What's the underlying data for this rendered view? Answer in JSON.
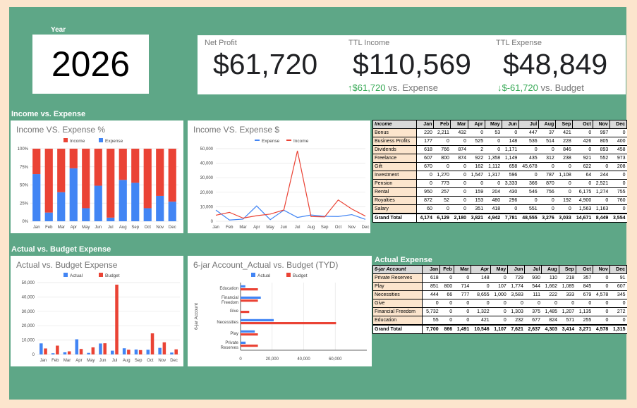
{
  "year": {
    "label": "Year",
    "value": "2026"
  },
  "kpis": {
    "net_profit": {
      "label": "Net Profit",
      "value": "$61,720"
    },
    "ttl_income": {
      "label": "TTL Income",
      "value": "$110,569",
      "delta_arrow": "↑",
      "delta_value": "$61,720",
      "delta_text": "vs. Expense"
    },
    "ttl_expense": {
      "label": "TTL Expense",
      "value": "$48,849",
      "delta_arrow": "↓",
      "delta_value": "$-61,720",
      "delta_text": "vs. Budget"
    }
  },
  "sections": {
    "income_vs_expense": "Income vs. Expense",
    "actual_vs_budget": "Actual vs. Budget Expense",
    "actual_expense": "Actual Expense"
  },
  "colors": {
    "income": "#ea4335",
    "expense": "#4285f4",
    "panel": "#5ea787",
    "page": "#fce5cd",
    "positive": "#34a853"
  },
  "chart_data": [
    {
      "id": "pct",
      "type": "bar",
      "stacked": "percent",
      "title": "Income VS. Expense %",
      "categories": [
        "Jan",
        "Feb",
        "Mar",
        "Apr",
        "May",
        "Jun",
        "Jul",
        "Aug",
        "Sep",
        "Oct",
        "Nov",
        "Dec"
      ],
      "series": [
        {
          "name": "Income",
          "color": "#ea4335",
          "values": [
            35,
            88,
            60,
            27,
            82,
            51,
            95,
            43,
            47,
            82,
            65,
            73
          ]
        },
        {
          "name": "Expense",
          "color": "#4285f4",
          "values": [
            65,
            12,
            40,
            73,
            18,
            49,
            5,
            57,
            53,
            18,
            35,
            27
          ]
        }
      ],
      "yticks": [
        "0%",
        "25%",
        "50%",
        "75%",
        "100%"
      ],
      "ylim": [
        0,
        100
      ],
      "legend": "top"
    },
    {
      "id": "line",
      "type": "line",
      "title": "Income VS. Expense $",
      "categories": [
        "Jan",
        "Feb",
        "Mar",
        "Apr",
        "May",
        "Jun",
        "Jul",
        "Aug",
        "Sep",
        "Oct",
        "Nov",
        "Dec"
      ],
      "series": [
        {
          "name": "Expense",
          "color": "#4285f4",
          "values": [
            7700,
            866,
            1491,
            10546,
            1107,
            7621,
            2637,
            4303,
            3414,
            3271,
            4578,
            1315
          ]
        },
        {
          "name": "Income",
          "color": "#ea4335",
          "values": [
            4174,
            6129,
            2180,
            3821,
            4942,
            7781,
            48555,
            3276,
            3033,
            14671,
            8449,
            3554
          ]
        }
      ],
      "yticks": [
        "0",
        "10,000",
        "20,000",
        "30,000",
        "40,000",
        "50,000"
      ],
      "ylim": [
        0,
        50000
      ],
      "legend": "top"
    },
    {
      "id": "avb",
      "type": "bar",
      "title": "Actual vs. Budget Expense",
      "categories": [
        "Jan",
        "Feb",
        "Mar",
        "Apr",
        "May",
        "Jun",
        "Jul",
        "Aug",
        "Sep",
        "Oct",
        "Nov",
        "Dec"
      ],
      "series": [
        {
          "name": "Actual",
          "color": "#4285f4",
          "values": [
            7700,
            866,
            1491,
            10546,
            1107,
            7621,
            2637,
            4303,
            3414,
            3271,
            4578,
            1315
          ]
        },
        {
          "name": "Budget",
          "color": "#ea4335",
          "values": [
            4174,
            6129,
            2180,
            3821,
            4942,
            7781,
            48555,
            3276,
            3033,
            14671,
            8449,
            3554
          ]
        }
      ],
      "yticks": [
        "0",
        "10,000",
        "20,000",
        "30,000",
        "40,000",
        "50,000"
      ],
      "ylim": [
        0,
        50000
      ],
      "legend": "top"
    },
    {
      "id": "jar",
      "type": "bar",
      "orientation": "horizontal",
      "title": "6-jar Account_Actual vs. Budget (TYD)",
      "ylabel": "6-jar Account",
      "categories": [
        "Education",
        "Financial Freedom",
        "Give",
        "Necessities",
        "Play",
        "Private Reserves"
      ],
      "series": [
        {
          "name": "Actual",
          "color": "#4285f4",
          "values": [
            3035,
            12831,
            0,
            20997,
            9029,
            3201
          ]
        },
        {
          "name": "Budget",
          "color": "#ea4335",
          "values": [
            11000,
            11000,
            5500,
            60500,
            11000,
            11000
          ]
        }
      ],
      "xticks": [
        "0",
        "20,000",
        "40,000",
        "60,000"
      ],
      "xlim": [
        0,
        80000
      ],
      "legend": "top"
    }
  ],
  "income_table": {
    "headers": [
      "Income",
      "Jan",
      "Feb",
      "Mar",
      "Apr",
      "May",
      "Jun",
      "Jul",
      "Aug",
      "Sep",
      "Oct",
      "Nov",
      "Dec"
    ],
    "rows": [
      [
        "Bonus",
        "220",
        "2,211",
        "432",
        "0",
        "53",
        "0",
        "447",
        "37",
        "421",
        "0",
        "997",
        "0"
      ],
      [
        "Business Profits",
        "177",
        "0",
        "0",
        "525",
        "0",
        "148",
        "536",
        "514",
        "228",
        "426",
        "805",
        "400"
      ],
      [
        "Dividends",
        "618",
        "766",
        "874",
        "2",
        "0",
        "1,171",
        "0",
        "0",
        "846",
        "0",
        "893",
        "458"
      ],
      [
        "Freelance",
        "607",
        "800",
        "874",
        "922",
        "1,358",
        "1,149",
        "435",
        "312",
        "238",
        "921",
        "552",
        "973"
      ],
      [
        "Gift",
        "670",
        "0",
        "0",
        "162",
        "1,112",
        "658",
        "45,678",
        "0",
        "0",
        "622",
        "0",
        "208"
      ],
      [
        "Investment",
        "0",
        "1,270",
        "0",
        "1,547",
        "1,317",
        "596",
        "0",
        "787",
        "1,108",
        "64",
        "244",
        "0"
      ],
      [
        "Pension",
        "0",
        "773",
        "0",
        "0",
        "0",
        "3,333",
        "366",
        "870",
        "0",
        "0",
        "2,521",
        "0"
      ],
      [
        "Rental",
        "950",
        "257",
        "0",
        "159",
        "204",
        "430",
        "546",
        "756",
        "0",
        "6,175",
        "1,274",
        "755"
      ],
      [
        "Royalties",
        "872",
        "52",
        "0",
        "153",
        "480",
        "296",
        "0",
        "0",
        "192",
        "4,900",
        "0",
        "760"
      ],
      [
        "Salary",
        "60",
        "0",
        "0",
        "351",
        "418",
        "0",
        "551",
        "0",
        "0",
        "1,563",
        "1,163",
        "0"
      ]
    ],
    "total": [
      "Grand Total",
      "4,174",
      "6,129",
      "2,180",
      "3,821",
      "4,942",
      "7,781",
      "48,555",
      "3,276",
      "3,033",
      "14,671",
      "8,449",
      "3,554"
    ]
  },
  "expense_table": {
    "headers": [
      "6-jar Account",
      "Jan",
      "Feb",
      "Mar",
      "Apr",
      "May",
      "Jun",
      "Jul",
      "Aug",
      "Sep",
      "Oct",
      "Nov",
      "Dec"
    ],
    "rows": [
      [
        "Private Reserves",
        "618",
        "0",
        "0",
        "148",
        "0",
        "729",
        "930",
        "110",
        "218",
        "357",
        "0",
        "91"
      ],
      [
        "Play",
        "851",
        "800",
        "714",
        "0",
        "107",
        "1,774",
        "544",
        "1,662",
        "1,085",
        "845",
        "0",
        "607"
      ],
      [
        "Necessities",
        "444",
        "66",
        "777",
        "8,655",
        "1,000",
        "3,583",
        "111",
        "222",
        "333",
        "679",
        "4,578",
        "345"
      ],
      [
        "Give",
        "0",
        "0",
        "0",
        "0",
        "0",
        "0",
        "0",
        "0",
        "0",
        "0",
        "0",
        "0"
      ],
      [
        "Financial Freedom",
        "5,732",
        "0",
        "0",
        "1,322",
        "0",
        "1,303",
        "375",
        "1,485",
        "1,207",
        "1,135",
        "0",
        "272"
      ],
      [
        "Education",
        "55",
        "0",
        "0",
        "421",
        "0",
        "232",
        "677",
        "824",
        "571",
        "255",
        "0",
        "0"
      ]
    ],
    "total": [
      "Grand Total",
      "7,700",
      "866",
      "1,491",
      "10,546",
      "1,107",
      "7,621",
      "2,637",
      "4,303",
      "3,414",
      "3,271",
      "4,578",
      "1,315"
    ]
  }
}
